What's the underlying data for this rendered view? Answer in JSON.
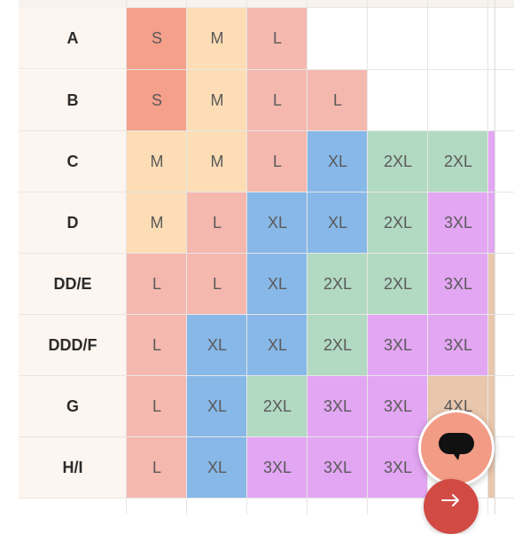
{
  "size_chart": {
    "columns_visible_labels": [],
    "rows": [
      {
        "band": "A",
        "sizes": [
          "S",
          "M",
          "L",
          "",
          "",
          "",
          ""
        ]
      },
      {
        "band": "B",
        "sizes": [
          "S",
          "M",
          "L",
          "L",
          "",
          "",
          ""
        ]
      },
      {
        "band": "C",
        "sizes": [
          "M",
          "M",
          "L",
          "XL",
          "2XL",
          "2XL",
          ""
        ]
      },
      {
        "band": "D",
        "sizes": [
          "M",
          "L",
          "XL",
          "XL",
          "2XL",
          "3XL",
          ""
        ]
      },
      {
        "band": "DD/E",
        "sizes": [
          "L",
          "L",
          "XL",
          "2XL",
          "2XL",
          "3XL",
          ""
        ]
      },
      {
        "band": "DDD/F",
        "sizes": [
          "L",
          "XL",
          "XL",
          "2XL",
          "3XL",
          "3XL",
          ""
        ]
      },
      {
        "band": "G",
        "sizes": [
          "L",
          "XL",
          "2XL",
          "3XL",
          "3XL",
          "4XL",
          ""
        ]
      },
      {
        "band": "H/I",
        "sizes": [
          "L",
          "XL",
          "3XL",
          "3XL",
          "3XL",
          "",
          ""
        ]
      }
    ],
    "size_colors": {
      "S": "#f4a08a",
      "M": "#fcddb5",
      "L": "#f4b8ae",
      "XL": "#87b8e8",
      "2XL": "#b2d9c2",
      "3XL": "#e3a6f3",
      "4XL": "#e9c7ad"
    },
    "seventh_column_colors": [
      "",
      "",
      "#e3a6f3",
      "#e3a6f3",
      "#e9c7ad",
      "#e9c7ad",
      "#e9c7ad",
      "#e9c7ad"
    ]
  },
  "chat_button": {
    "icon": "chat-bubble-icon"
  },
  "next_button": {
    "icon": "arrow-right-icon"
  }
}
